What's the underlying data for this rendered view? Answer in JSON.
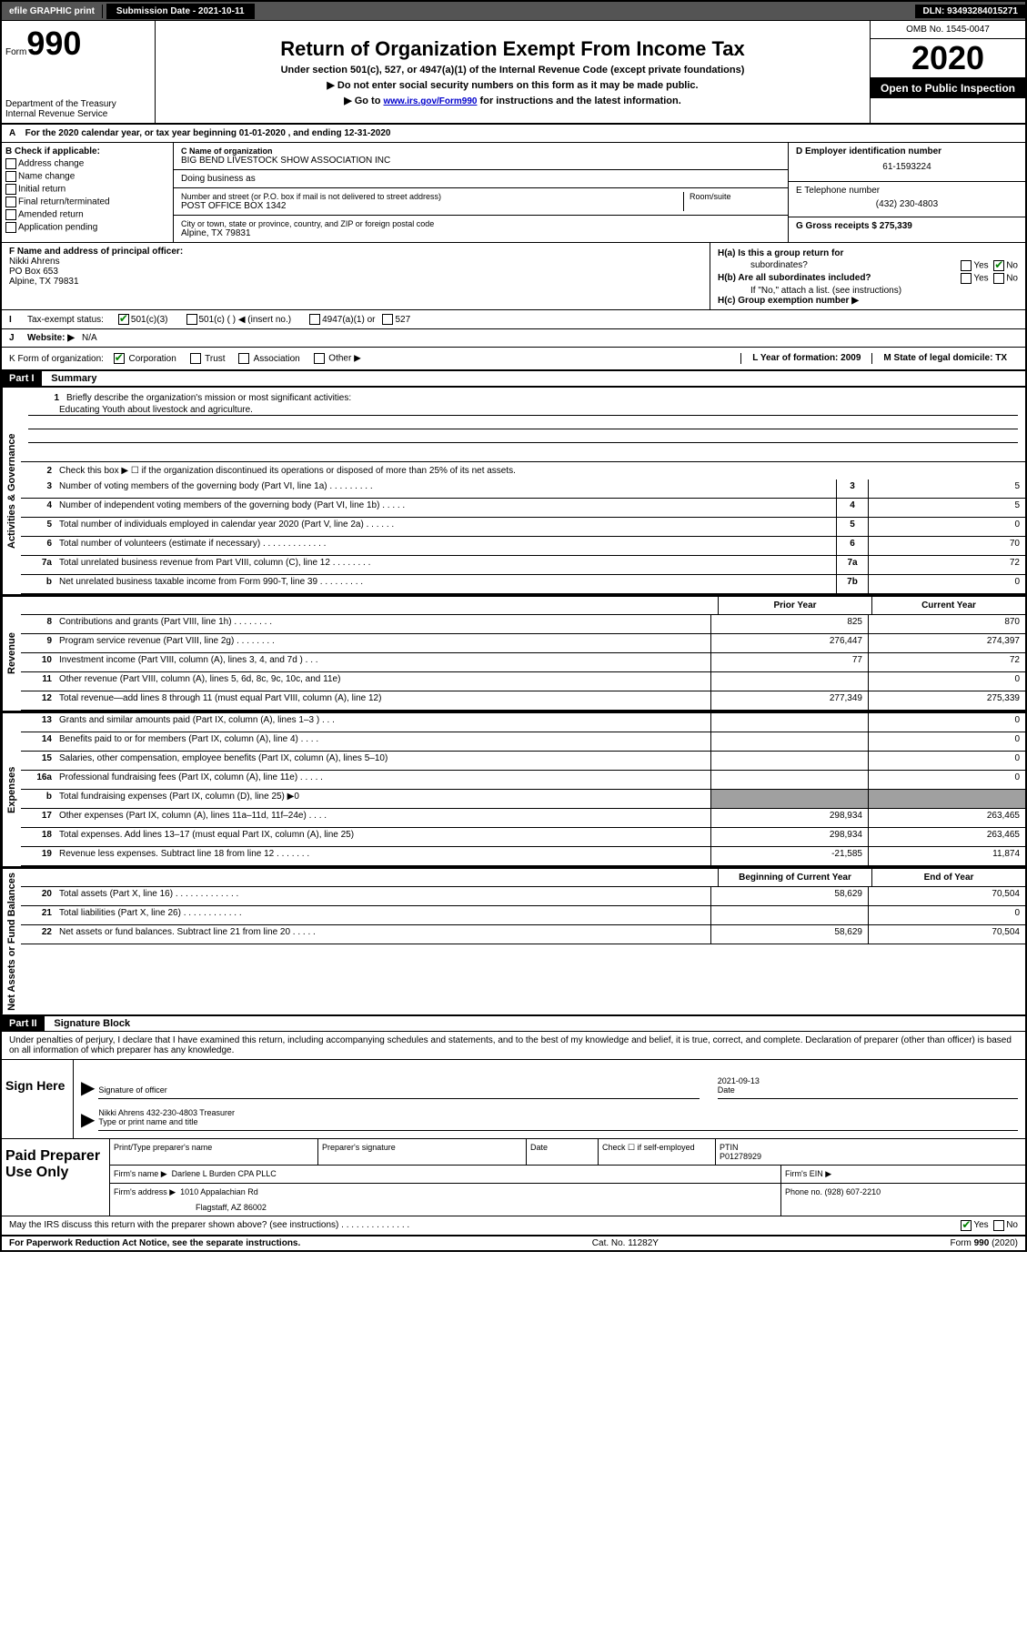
{
  "topbar": {
    "efile": "efile GRAPHIC print",
    "submission": "Submission Date - 2021-10-11",
    "dln": "DLN: 93493284015271"
  },
  "header": {
    "form_label": "Form",
    "form_number": "990",
    "dept": "Department of the Treasury\nInternal Revenue Service",
    "main_title": "Return of Organization Exempt From Income Tax",
    "sub_title": "Under section 501(c), 527, or 4947(a)(1) of the Internal Revenue Code (except private foundations)",
    "instr1": "▶ Do not enter social security numbers on this form as it may be made public.",
    "instr2_prefix": "▶ Go to ",
    "instr2_link": "www.irs.gov/Form990",
    "instr2_suffix": " for instructions and the latest information.",
    "omb": "OMB No. 1545-0047",
    "year": "2020",
    "inspection": "Open to Public Inspection"
  },
  "line_a": "For the 2020 calendar year, or tax year beginning 01-01-2020    , and ending 12-31-2020",
  "section_b": {
    "label": "B Check if applicable:",
    "items": [
      "Address change",
      "Name change",
      "Initial return",
      "Final return/terminated",
      "Amended return",
      "Application pending"
    ]
  },
  "section_c": {
    "name_label": "C Name of organization",
    "name_value": "BIG BEND LIVESTOCK SHOW ASSOCIATION INC",
    "dba_label": "Doing business as",
    "street_label": "Number and street (or P.O. box if mail is not delivered to street address)",
    "street_value": "POST OFFICE BOX 1342",
    "room_label": "Room/suite",
    "city_label": "City or town, state or province, country, and ZIP or foreign postal code",
    "city_value": "Alpine, TX  79831"
  },
  "section_d": {
    "ein_label": "D Employer identification number",
    "ein_value": "61-1593224",
    "phone_label": "E Telephone number",
    "phone_value": "(432) 230-4803",
    "gross_label": "G Gross receipts $ 275,339"
  },
  "section_f": {
    "label": "F  Name and address of principal officer:",
    "name": "Nikki Ahrens",
    "addr1": "PO Box 653",
    "addr2": "Alpine, TX  79831"
  },
  "section_h": {
    "ha_label": "H(a)  Is this a group return for",
    "ha_sub": "subordinates?",
    "hb_label": "H(b)  Are all subordinates included?",
    "hb_note": "If \"No,\" attach a list. (see instructions)",
    "hc_label": "H(c)  Group exemption number ▶",
    "yes": "Yes",
    "no": "No"
  },
  "section_i": {
    "label": "I",
    "text": "Tax-exempt status:",
    "opt1": "501(c)(3)",
    "opt2": "501(c) (  ) ◀ (insert no.)",
    "opt3": "4947(a)(1) or",
    "opt4": "527"
  },
  "section_j": {
    "label": "J",
    "text": "Website: ▶",
    "value": "N/A"
  },
  "section_k": {
    "label": "K Form of organization:",
    "opts": [
      "Corporation",
      "Trust",
      "Association",
      "Other ▶"
    ],
    "l_label": "L Year of formation: 2009",
    "m_label": "M State of legal domicile: TX"
  },
  "part1": {
    "header": "Part I",
    "title": "Summary",
    "q1_label": "1",
    "q1_text": "Briefly describe the organization's mission or most significant activities:",
    "q1_value": "Educating Youth about livestock and agriculture.",
    "q2_label": "2",
    "q2_text": "Check this box ▶ ☐  if the organization discontinued its operations or disposed of more than 25% of its net assets.",
    "rows_single": [
      {
        "num": "3",
        "text": "Number of voting members of the governing body (Part VI, line 1a)  .    .    .    .    .    .    .    .    .",
        "box": "3",
        "val": "5"
      },
      {
        "num": "4",
        "text": "Number of independent voting members of the governing body (Part VI, line 1b)   .    .    .    .    .",
        "box": "4",
        "val": "5"
      },
      {
        "num": "5",
        "text": "Total number of individuals employed in calendar year 2020 (Part V, line 2a)  .    .    .    .    .    .",
        "box": "5",
        "val": "0"
      },
      {
        "num": "6",
        "text": "Total number of volunteers (estimate if necessary)   .    .    .    .    .    .    .    .    .    .    .    .    .",
        "box": "6",
        "val": "70"
      },
      {
        "num": "7a",
        "text": "Total unrelated business revenue from Part VIII, column (C), line 12   .    .    .    .    .    .    .    .",
        "box": "7a",
        "val": "72"
      },
      {
        "num": "b",
        "text": "Net unrelated business taxable income from Form 990-T, line 39  .    .    .    .    .    .    .    .    .",
        "box": "7b",
        "val": "0"
      }
    ],
    "col_prior": "Prior Year",
    "col_current": "Current Year",
    "rows_revenue": [
      {
        "num": "8",
        "text": "Contributions and grants (Part VIII, line 1h)   .    .    .    .    .    .    .    .",
        "prior": "825",
        "current": "870"
      },
      {
        "num": "9",
        "text": "Program service revenue (Part VIII, line 2g)  .    .    .    .    .    .    .    .",
        "prior": "276,447",
        "current": "274,397"
      },
      {
        "num": "10",
        "text": "Investment income (Part VIII, column (A), lines 3, 4, and 7d )   .    .    .",
        "prior": "77",
        "current": "72"
      },
      {
        "num": "11",
        "text": "Other revenue (Part VIII, column (A), lines 5, 6d, 8c, 9c, 10c, and 11e)",
        "prior": "",
        "current": "0"
      },
      {
        "num": "12",
        "text": "Total revenue—add lines 8 through 11 (must equal Part VIII, column (A), line 12)",
        "prior": "277,349",
        "current": "275,339"
      }
    ],
    "rows_expenses": [
      {
        "num": "13",
        "text": "Grants and similar amounts paid (Part IX, column (A), lines 1–3 )   .    .    .",
        "prior": "",
        "current": "0"
      },
      {
        "num": "14",
        "text": "Benefits paid to or for members (Part IX, column (A), line 4)   .    .    .    .",
        "prior": "",
        "current": "0"
      },
      {
        "num": "15",
        "text": "Salaries, other compensation, employee benefits (Part IX, column (A), lines 5–10)",
        "prior": "",
        "current": "0"
      },
      {
        "num": "16a",
        "text": "Professional fundraising fees (Part IX, column (A), line 11e)  .    .    .    .    .",
        "prior": "",
        "current": "0"
      },
      {
        "num": "b",
        "text": "Total fundraising expenses (Part IX, column (D), line 25) ▶0",
        "prior": "grey",
        "current": "grey"
      },
      {
        "num": "17",
        "text": "Other expenses (Part IX, column (A), lines 11a–11d, 11f–24e)   .    .    .    .",
        "prior": "298,934",
        "current": "263,465"
      },
      {
        "num": "18",
        "text": "Total expenses. Add lines 13–17 (must equal Part IX, column (A), line 25)",
        "prior": "298,934",
        "current": "263,465"
      },
      {
        "num": "19",
        "text": "Revenue less expenses. Subtract line 18 from line 12  .    .    .    .    .    .    .",
        "prior": "-21,585",
        "current": "11,874"
      }
    ],
    "col_beginning": "Beginning of Current Year",
    "col_end": "End of Year",
    "rows_assets": [
      {
        "num": "20",
        "text": "Total assets (Part X, line 16)  .    .    .    .    .    .    .    .    .    .    .    .    .",
        "prior": "58,629",
        "current": "70,504"
      },
      {
        "num": "21",
        "text": "Total liabilities (Part X, line 26)   .    .    .    .    .    .    .    .    .    .    .    .",
        "prior": "",
        "current": "0"
      },
      {
        "num": "22",
        "text": "Net assets or fund balances. Subtract line 21 from line 20   .    .    .    .    .",
        "prior": "58,629",
        "current": "70,504"
      }
    ],
    "side_gov": "Activities & Governance",
    "side_rev": "Revenue",
    "side_exp": "Expenses",
    "side_net": "Net Assets or Fund Balances"
  },
  "part2": {
    "header": "Part II",
    "title": "Signature Block",
    "declaration": "Under penalties of perjury, I declare that I have examined this return, including accompanying schedules and statements, and to the best of my knowledge and belief, it is true, correct, and complete. Declaration of preparer (other than officer) is based on all information of which preparer has any knowledge."
  },
  "sign": {
    "label": "Sign Here",
    "sig_label": "Signature of officer",
    "date_label": "Date",
    "date_value": "2021-09-13",
    "name_label": "Type or print name and title",
    "name_value": "Nikki Ahrens 432-230-4803  Treasurer"
  },
  "preparer": {
    "label": "Paid Preparer Use Only",
    "print_name_label": "Print/Type preparer's name",
    "sig_label": "Preparer's signature",
    "date_label": "Date",
    "check_label": "Check ☐ if self-employed",
    "ptin_label": "PTIN",
    "ptin_value": "P01278929",
    "firm_name_label": "Firm's name     ▶",
    "firm_name_value": "Darlene L Burden CPA PLLC",
    "firm_ein_label": "Firm's EIN ▶",
    "firm_addr_label": "Firm's address ▶",
    "firm_addr_value1": "1010 Appalachian Rd",
    "firm_addr_value2": "Flagstaff, AZ  86002",
    "phone_label": "Phone no. (928) 607-2210"
  },
  "discuss": {
    "text": "May the IRS discuss this return with the preparer shown above? (see instructions)   .    .    .    .    .    .    .    .    .    .    .    .    .    .",
    "yes": "Yes",
    "no": "No"
  },
  "footer": {
    "left": "For Paperwork Reduction Act Notice, see the separate instructions.",
    "center": "Cat. No. 11282Y",
    "right": "Form 990 (2020)"
  }
}
